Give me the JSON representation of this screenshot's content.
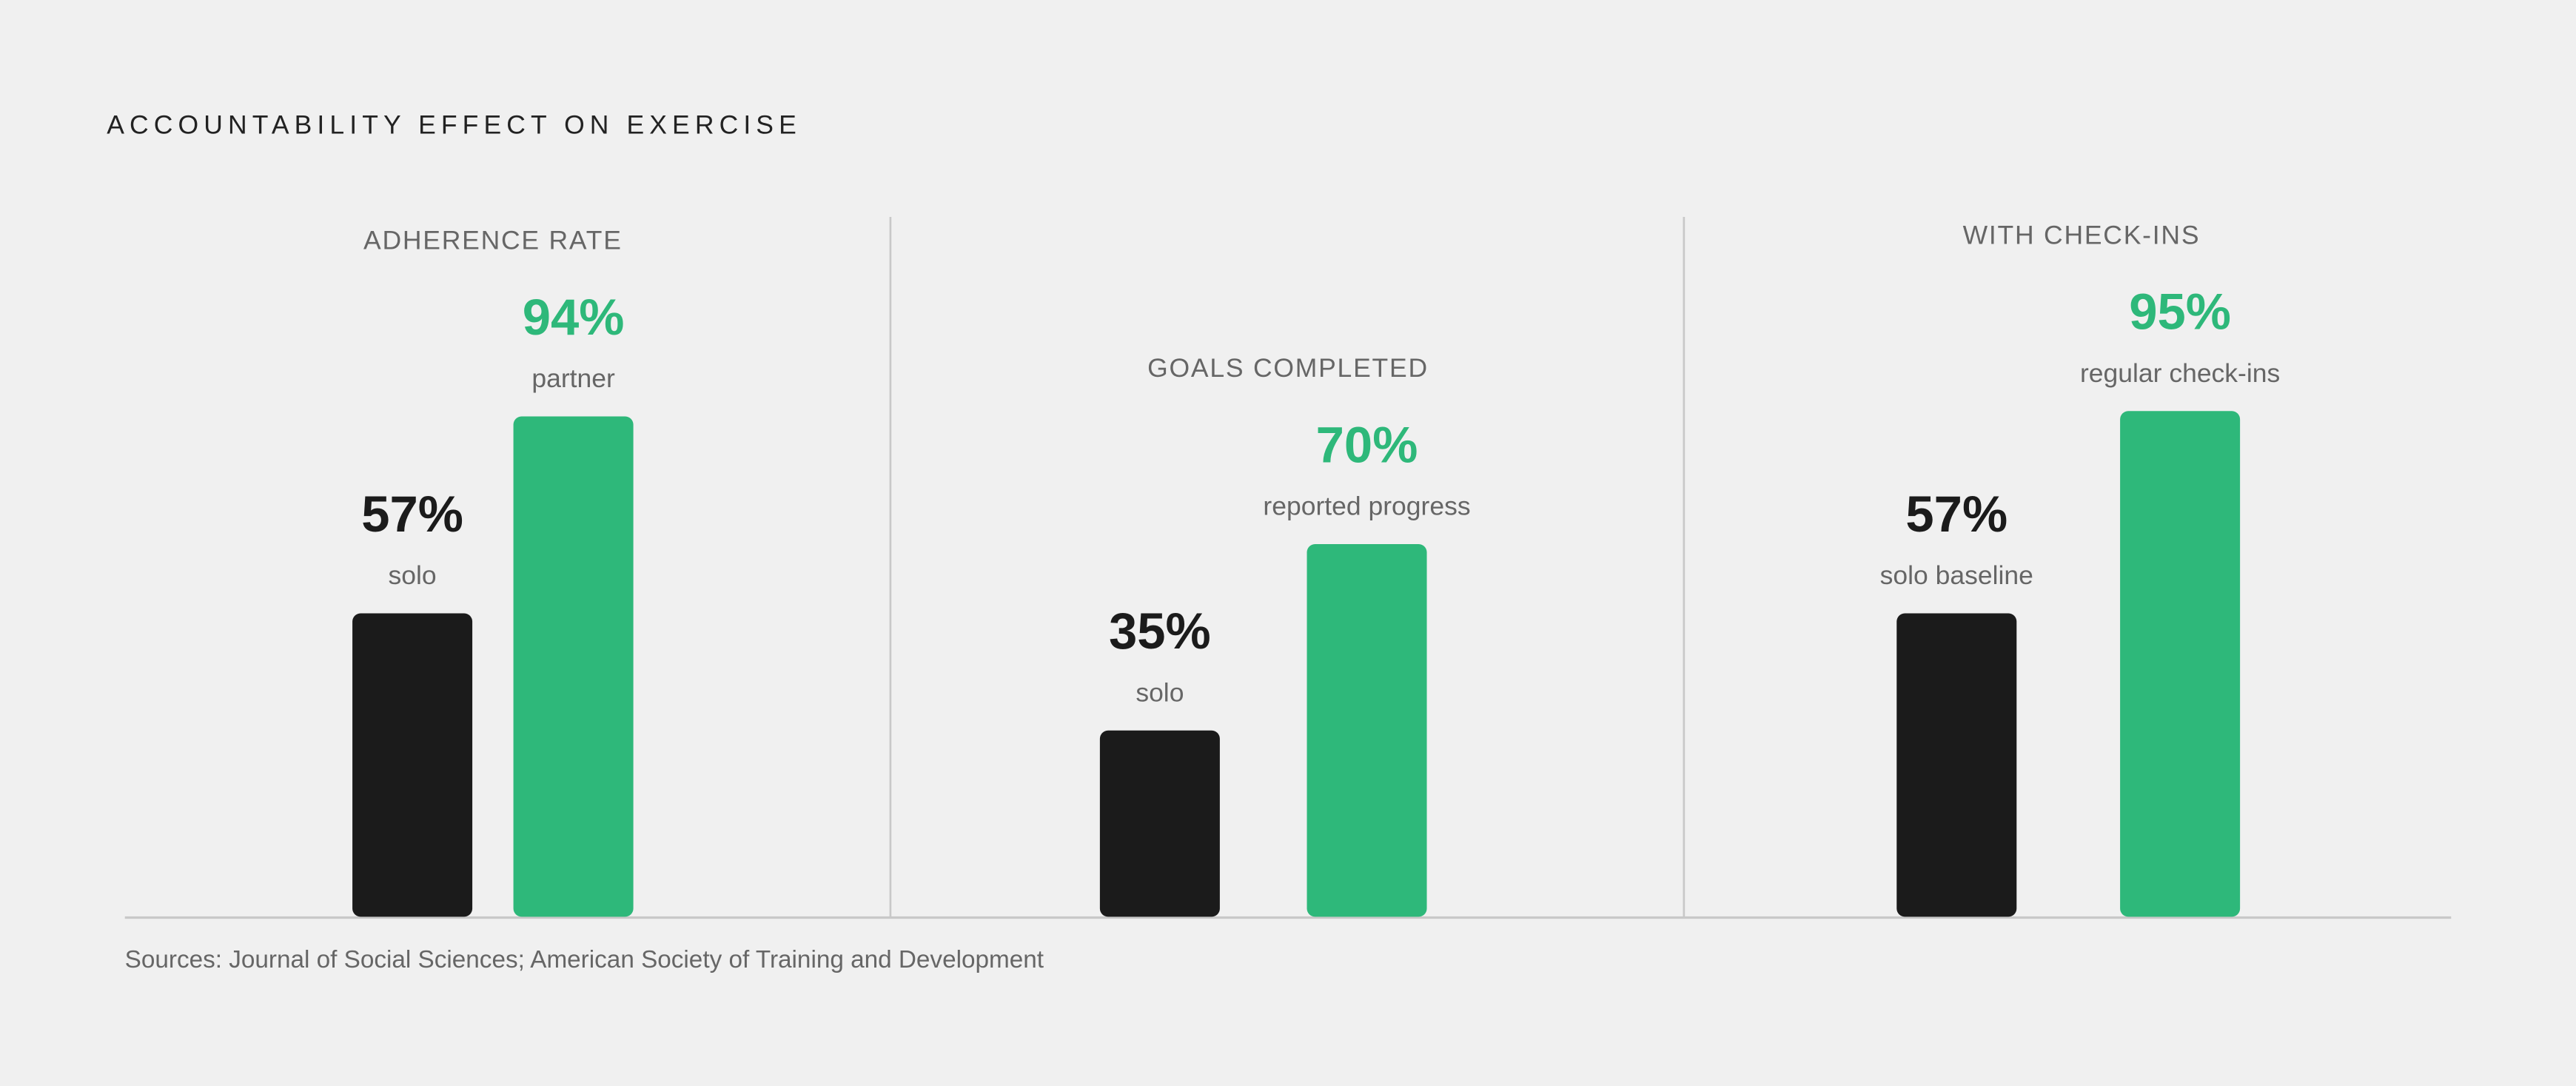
{
  "title": "ACCOUNTABILITY EFFECT ON EXERCISE",
  "source": "Sources: Journal of Social Sciences; American Society of Training and Development",
  "chart_data": [
    {
      "type": "bar",
      "title": "ADHERENCE RATE",
      "categories": [
        "solo",
        "partner"
      ],
      "values": [
        57,
        94
      ],
      "value_labels": [
        "57%",
        "94%"
      ],
      "colors": [
        "#1b1b1b",
        "#2eb87a"
      ],
      "ylim": [
        0,
        100
      ]
    },
    {
      "type": "bar",
      "title": "GOALS COMPLETED",
      "categories": [
        "solo",
        "reported progress"
      ],
      "values": [
        35,
        70
      ],
      "value_labels": [
        "35%",
        "70%"
      ],
      "colors": [
        "#1b1b1b",
        "#2eb87a"
      ],
      "ylim": [
        0,
        100
      ]
    },
    {
      "type": "bar",
      "title": "WITH CHECK-INS",
      "categories": [
        "solo baseline",
        "regular check-ins"
      ],
      "values": [
        57,
        95
      ],
      "value_labels": [
        "57%",
        "95%"
      ],
      "colors": [
        "#1b1b1b",
        "#2eb87a"
      ],
      "ylim": [
        0,
        100
      ]
    }
  ]
}
